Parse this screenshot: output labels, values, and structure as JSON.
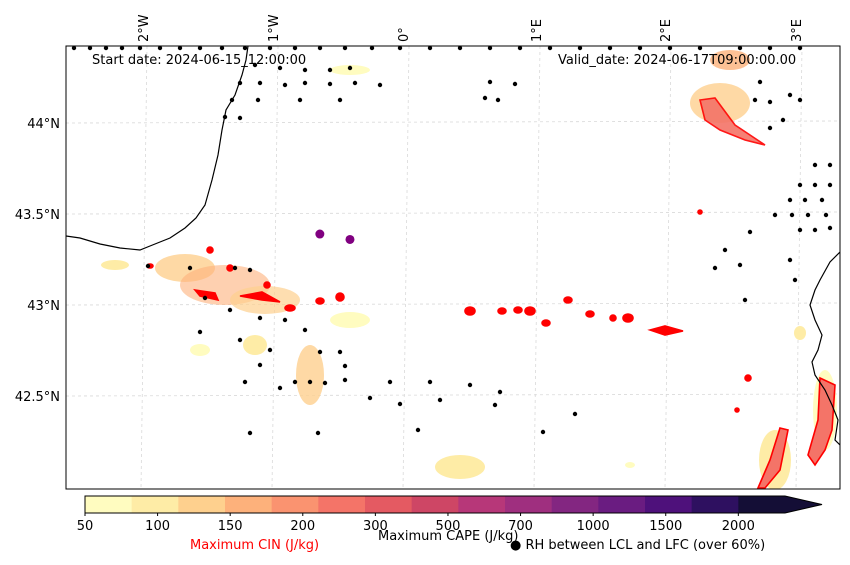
{
  "map": {
    "start_date": "Start date: 2024-06-15_12:00:00",
    "valid_date": "Valid_date: 2024-06-17T09:00:00.00",
    "lon_labels": [
      "2°W",
      "1°W",
      "0°",
      "1°E",
      "2°E",
      "3°E"
    ],
    "lat_labels": [
      "44°N",
      "43.5°N",
      "43°N",
      "42.5°N"
    ],
    "markers": [
      {
        "lon": -0.65,
        "lat": 43.39,
        "color": "#800080"
      },
      {
        "lon": -0.42,
        "lat": 43.36,
        "color": "#800080"
      }
    ]
  },
  "colorbar": {
    "ticks": [
      "50",
      "100",
      "150",
      "200",
      "300",
      "500",
      "700",
      "1000",
      "1500",
      "2000"
    ],
    "colors": [
      "#fffcc0",
      "#feeca6",
      "#fed08e",
      "#fdb17b",
      "#fa9370",
      "#f47468",
      "#e45a62",
      "#ce4665",
      "#b73779",
      "#9f2f7f",
      "#832681",
      "#6a1c81",
      "#4e117b",
      "#2e1060",
      "#140e36"
    ],
    "cape_label": "Maximum CAPE (J/kg)",
    "cin_label": "Maximum CIN (J/kg)",
    "cin_color": "#ff0000",
    "rh_label": "● RH between LCL and LFC (over 60%)"
  }
}
